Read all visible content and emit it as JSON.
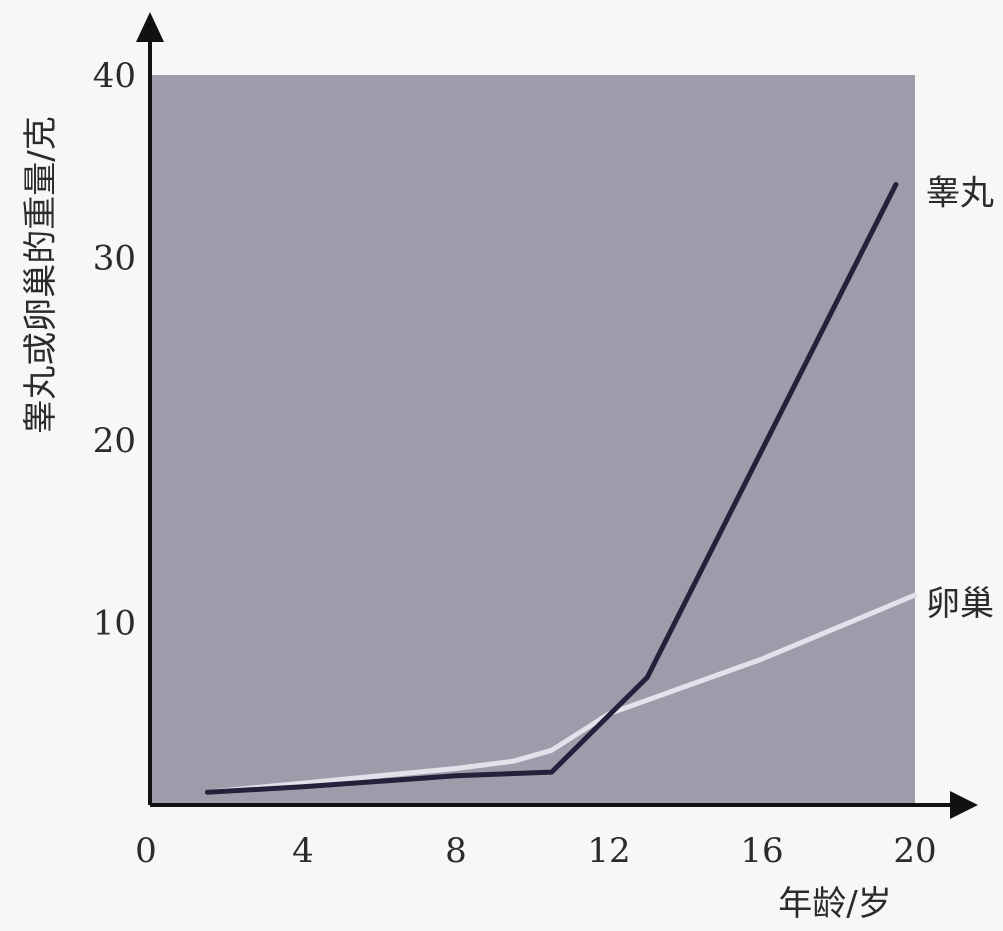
{
  "chart_data": {
    "type": "line",
    "xlabel": "年龄/岁",
    "ylabel": "睾丸或卵巢的重量/克",
    "xlim": [
      0,
      20
    ],
    "ylim": [
      0,
      40
    ],
    "x_ticks": [
      "0",
      "4",
      "8",
      "12",
      "16",
      "20"
    ],
    "y_ticks": [
      "10",
      "20",
      "30",
      "40"
    ],
    "grid": false,
    "plot_background": "#9e9cab",
    "series": [
      {
        "name": "睾丸",
        "color": "#24213a",
        "x": [
          1.5,
          4,
          8,
          10.5,
          13,
          19.5
        ],
        "y": [
          0.7,
          1,
          1.6,
          1.8,
          7,
          34
        ]
      },
      {
        "name": "卵巢",
        "color": "#e2e2ea",
        "x": [
          1.5,
          4,
          8,
          9.5,
          10.5,
          12,
          16,
          20
        ],
        "y": [
          0.7,
          1.2,
          2,
          2.4,
          3,
          5,
          8,
          11.5
        ]
      }
    ]
  }
}
